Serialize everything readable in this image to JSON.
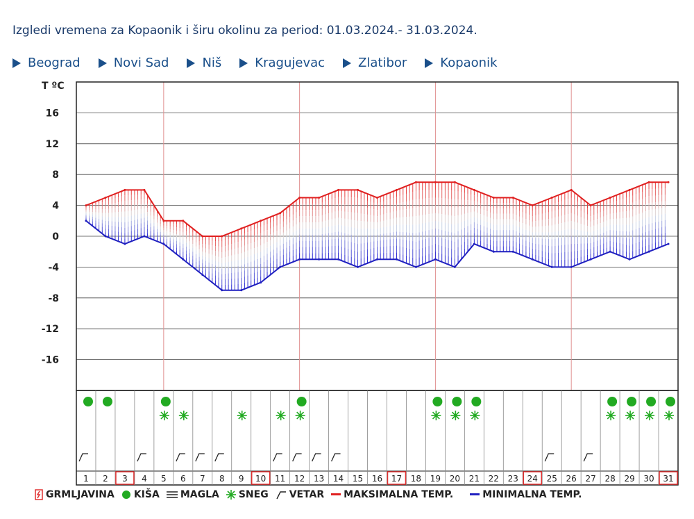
{
  "header": {
    "title": "Izgledi vremena za Kopaonik i širu okolinu za period: 01.03.2024.- 31.03.2024."
  },
  "nav": {
    "items": [
      "Beograd",
      "Novi Sad",
      "Niš",
      "Kragujevac",
      "Zlatibor",
      "Kopaonik"
    ]
  },
  "legend": {
    "thunder": "GRMLJAVINA",
    "rain": "KIŠA",
    "fog": "MAGLA",
    "snow": "SNEG",
    "wind": "VETAR",
    "max": "MAKSIMALNA TEMP.",
    "min": "MINIMALNA TEMP."
  },
  "colors": {
    "max_line": "#e02020",
    "min_line": "#2020c0",
    "grid_red": "#e09090",
    "grid_gray": "#cccccc",
    "rain": "#22aa22",
    "snow": "#22aa22",
    "highlight_box": "#e03030",
    "title_text": "#1a3a6a",
    "link": "#1a4f8a"
  },
  "chart_data": {
    "type": "area",
    "ylabel": "T ºC",
    "y_ticks": [
      16,
      12,
      8,
      4,
      0,
      -4,
      -8,
      -12,
      -16
    ],
    "ylim": [
      -20,
      20
    ],
    "x": [
      1,
      2,
      3,
      4,
      5,
      6,
      7,
      8,
      9,
      10,
      11,
      12,
      13,
      14,
      15,
      16,
      17,
      18,
      19,
      20,
      21,
      22,
      23,
      24,
      25,
      26,
      27,
      28,
      29,
      30,
      31
    ],
    "series": [
      {
        "name": "MAKSIMALNA TEMP.",
        "values": [
          4,
          5,
          6,
          6,
          2,
          2,
          0,
          0,
          1,
          2,
          3,
          5,
          5,
          6,
          6,
          5,
          6,
          7,
          7,
          7,
          6,
          5,
          5,
          4,
          5,
          6,
          4,
          5,
          6,
          7,
          7
        ]
      },
      {
        "name": "MINIMALNA TEMP.",
        "values": [
          2,
          0,
          -1,
          0,
          -1,
          -3,
          -5,
          -7,
          -7,
          -6,
          -4,
          -3,
          -3,
          -3,
          -4,
          -3,
          -3,
          -4,
          -3,
          -4,
          -1,
          -2,
          -2,
          -3,
          -4,
          -4,
          -3,
          -2,
          -3,
          -2,
          -1
        ]
      }
    ],
    "highlighted_days": [
      3,
      10,
      17,
      24,
      31
    ],
    "weather": {
      "rain": [
        1,
        2,
        5,
        12,
        19,
        20,
        21,
        28,
        29,
        30,
        31
      ],
      "snow": [
        5,
        6,
        9,
        11,
        12,
        19,
        20,
        21,
        28,
        29,
        30,
        31
      ],
      "wind": [
        1,
        4,
        6,
        7,
        8,
        11,
        12,
        13,
        14,
        25,
        27
      ]
    },
    "grid": true
  }
}
